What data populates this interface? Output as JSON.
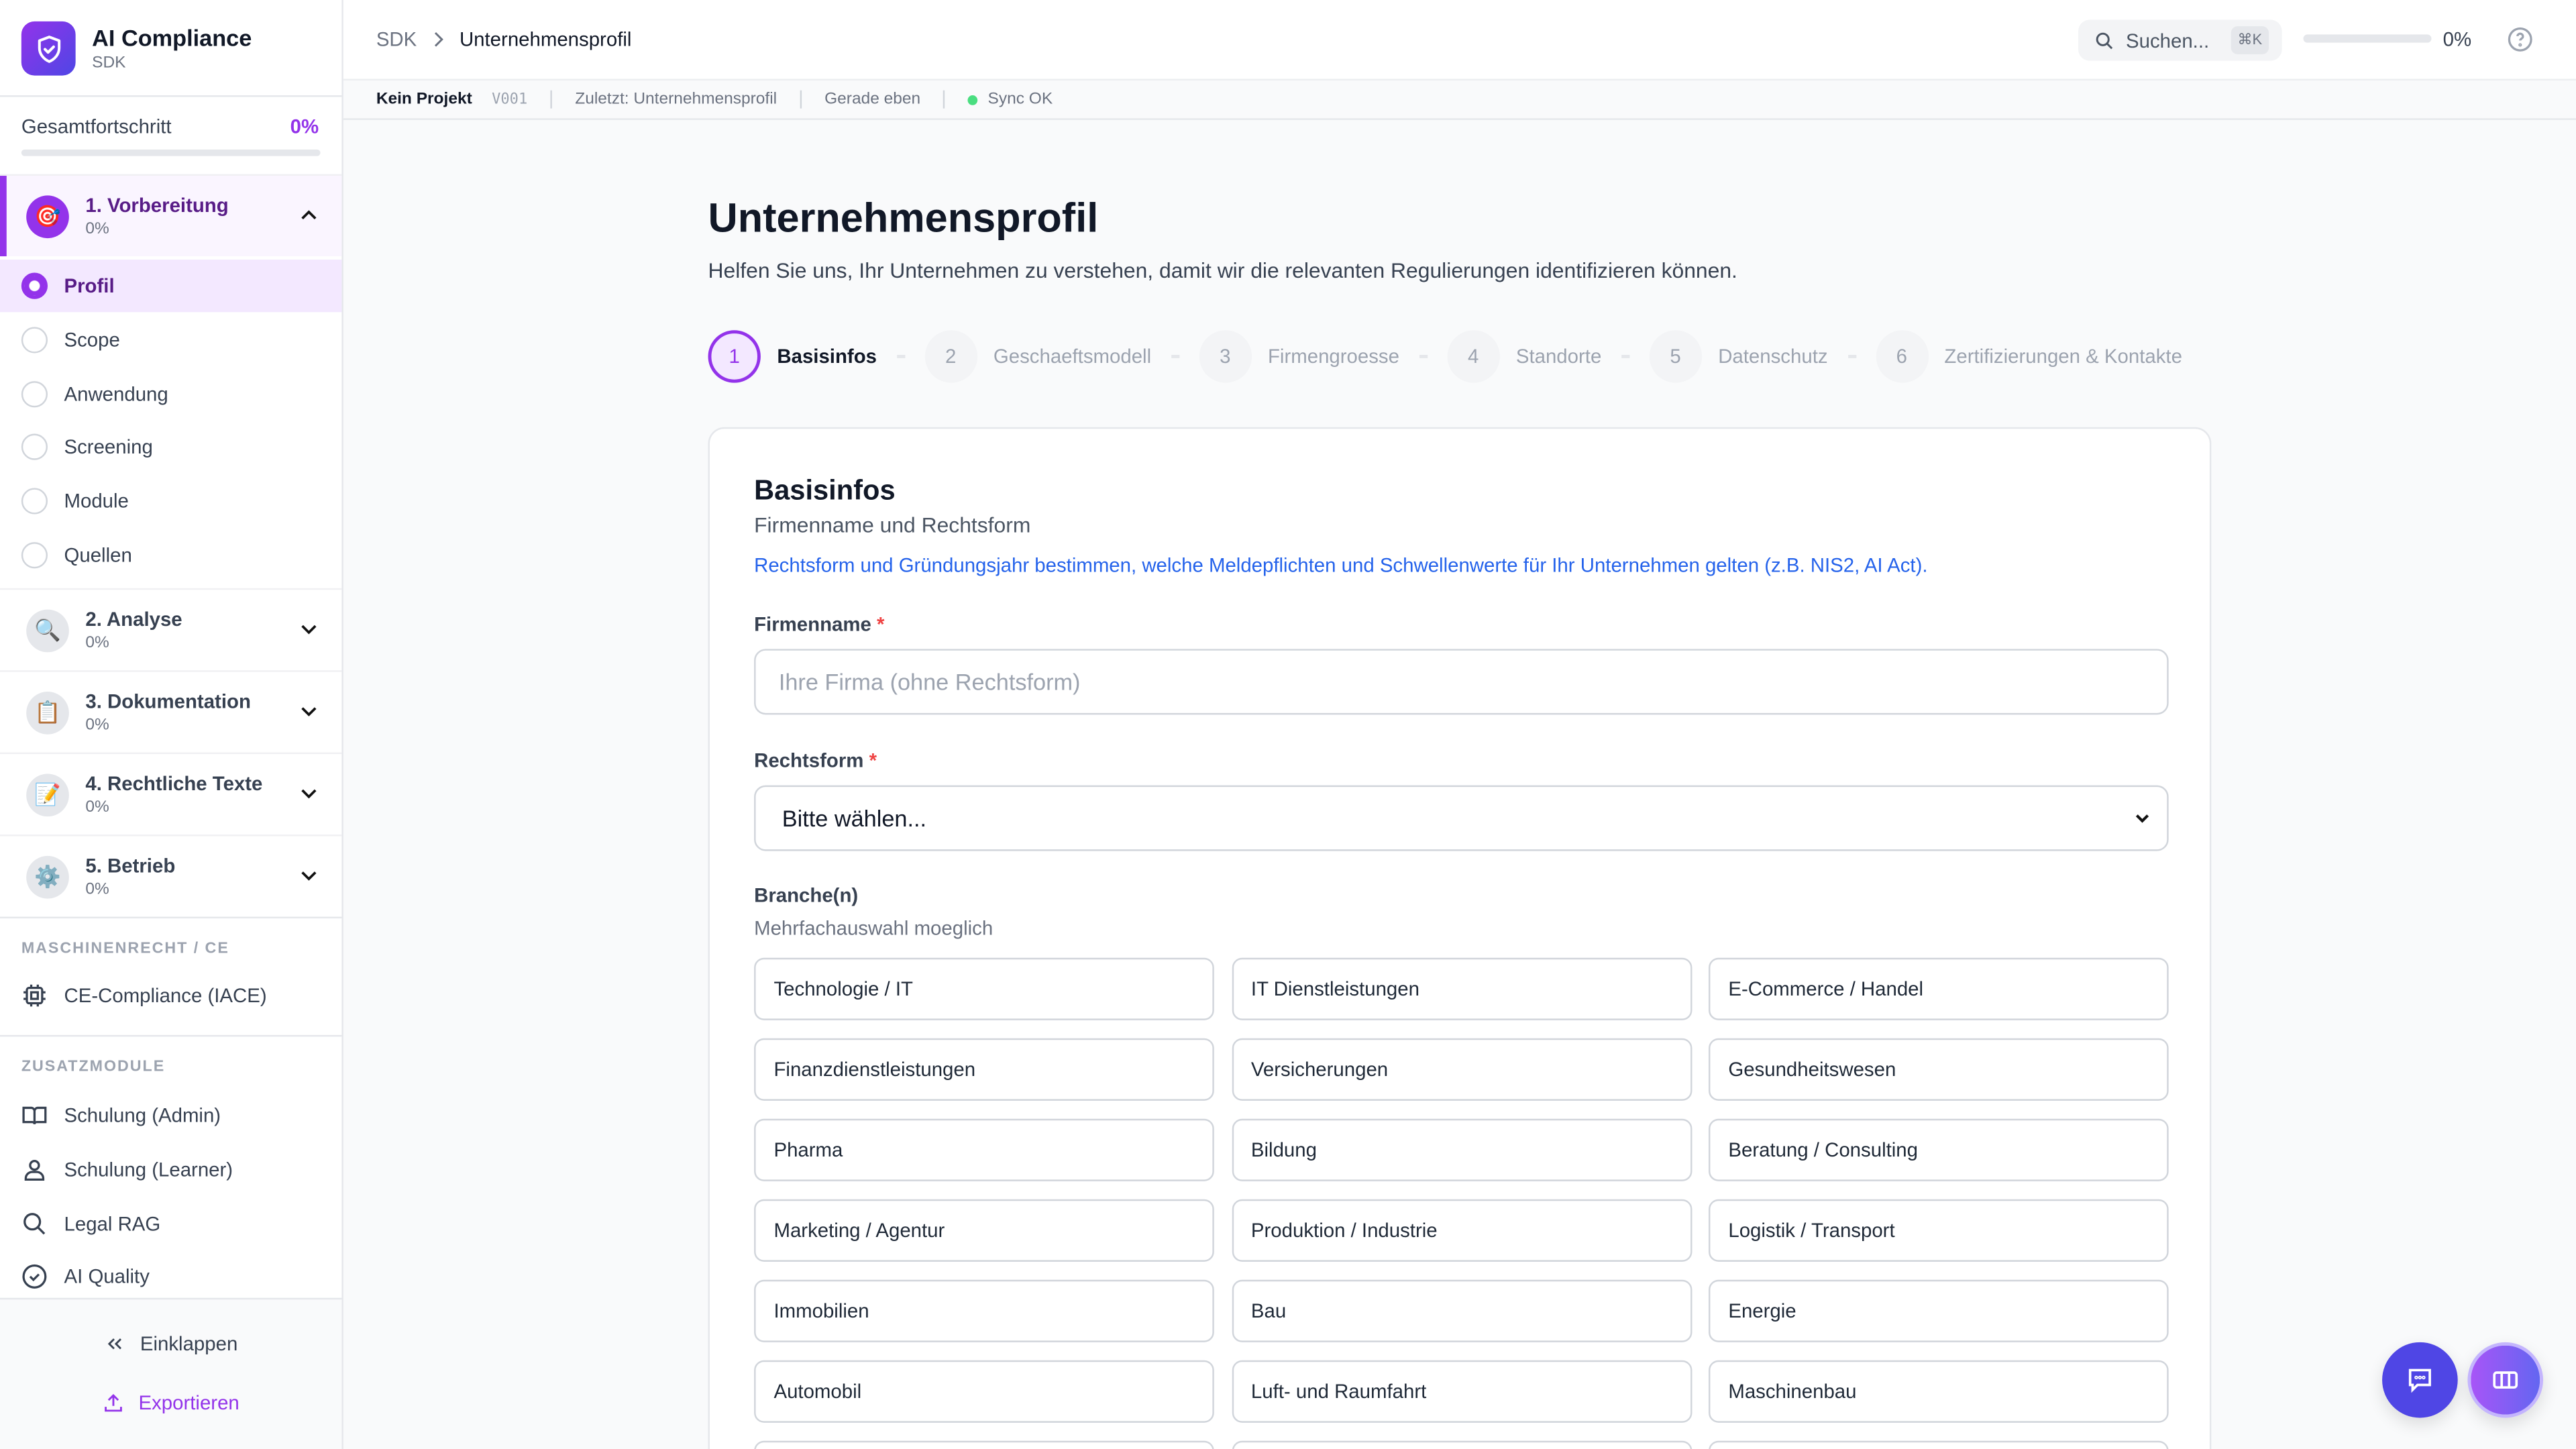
{
  "app": {
    "title": "AI Compliance",
    "subtitle": "SDK"
  },
  "progress": {
    "label": "Gesamtfortschritt",
    "value": "0%",
    "fraction": 0
  },
  "phases": [
    {
      "label": "1. Vorbereitung",
      "progress": "0%",
      "icon": "target-icon",
      "expanded": true
    },
    {
      "label": "2. Analyse",
      "progress": "0%",
      "icon": "magnifier-icon"
    },
    {
      "label": "3. Dokumentation",
      "progress": "0%",
      "icon": "clipboard-icon"
    },
    {
      "label": "4. Rechtliche Texte",
      "progress": "0%",
      "icon": "memo-icon"
    },
    {
      "label": "5. Betrieb",
      "progress": "0%",
      "icon": "gear-icon"
    }
  ],
  "substeps": [
    "Profil",
    "Scope",
    "Anwendung",
    "Screening",
    "Module",
    "Quellen"
  ],
  "sections": {
    "ce": "MASCHINENRECHT / CE",
    "extra": "ZUSATZMODULE"
  },
  "ce_item": "CE-Compliance (IACE)",
  "modules": [
    "Schulung (Admin)",
    "Schulung (Learner)",
    "Legal RAG",
    "AI Quality"
  ],
  "footer": {
    "collapse": "Einklappen",
    "export": "Exportieren"
  },
  "header": {
    "crumb_root": "SDK",
    "crumb_current": "Unternehmensprofil",
    "search": "Suchen...",
    "shortcut": "⌘K",
    "progress": "0%"
  },
  "status": {
    "project": "Kein Projekt",
    "version": "V001",
    "last": "Zuletzt: Unternehmensprofil",
    "time": "Gerade eben",
    "sync": "Sync OK",
    "sync_color": "#4ade80"
  },
  "page": {
    "title": "Unternehmensprofil",
    "description": "Helfen Sie uns, Ihr Unternehmen zu verstehen, damit wir die relevanten Regulierungen identifizieren können."
  },
  "steps": [
    {
      "n": "1",
      "label": "Basisinfos"
    },
    {
      "n": "2",
      "label": "Geschaeftsmodell"
    },
    {
      "n": "3",
      "label": "Firmengroesse"
    },
    {
      "n": "4",
      "label": "Standorte"
    },
    {
      "n": "5",
      "label": "Datenschutz"
    },
    {
      "n": "6",
      "label": "Zertifizierungen & Kontakte"
    }
  ],
  "form": {
    "title": "Basisinfos",
    "subtitle": "Firmenname und Rechtsform",
    "info": "Rechtsform und Gründungsjahr bestimmen, welche Meldepflichten und Schwellenwerte für Ihr Unternehmen gelten (z.B. NIS2, AI Act).",
    "name_label": "Firmenname",
    "name_placeholder": "Ihre Firma (ohne Rechtsform)",
    "name_value": "",
    "legal_label": "Rechtsform",
    "legal_value": "Bitte wählen...",
    "required": "*",
    "branch_label": "Branche(n)",
    "branch_hint": "Mehrfachauswahl moeglich",
    "branches": [
      "Technologie / IT",
      "IT Dienstleistungen",
      "E-Commerce / Handel",
      "Finanzdienstleistungen",
      "Versicherungen",
      "Gesundheitswesen",
      "Pharma",
      "Bildung",
      "Beratung / Consulting",
      "Marketing / Agentur",
      "Produktion / Industrie",
      "Logistik / Transport",
      "Immobilien",
      "Bau",
      "Energie",
      "Automobil",
      "Luft- und Raumfahrt",
      "Maschinenbau"
    ]
  },
  "colors": {
    "accent": "#9333ea",
    "chat": "#4f46e5",
    "link": "#2563eb"
  }
}
